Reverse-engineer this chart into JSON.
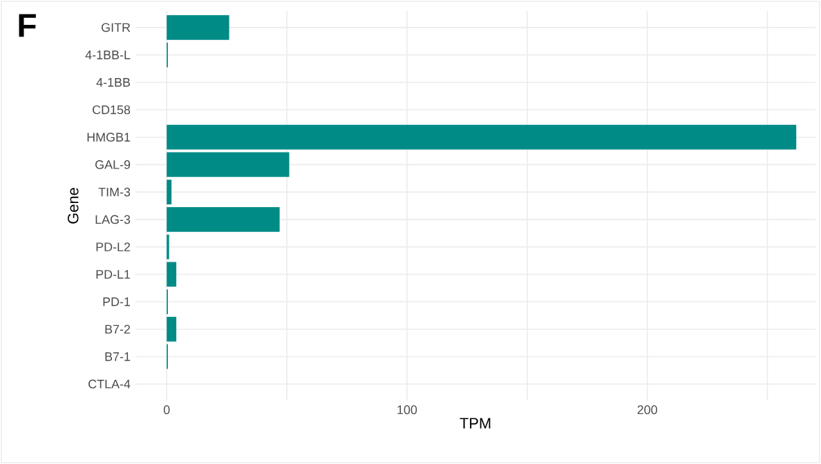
{
  "chart_data": {
    "type": "bar",
    "orientation": "horizontal",
    "title": "F",
    "xlabel": "TPM",
    "ylabel": "Gene",
    "categories": [
      "GITR",
      "4-1BB-L",
      "4-1BB",
      "CD158",
      "HMGB1",
      "GAL-9",
      "TIM-3",
      "LAG-3",
      "PD-L2",
      "PD-L1",
      "PD-1",
      "B7-2",
      "B7-1",
      "CTLA-4"
    ],
    "values": [
      26,
      0.5,
      0,
      0,
      262,
      51,
      2,
      47,
      1,
      4,
      0.5,
      4,
      0.5,
      0
    ],
    "color": "#008b87",
    "xlim": [
      -13,
      270
    ],
    "xticks": [
      0,
      {
        "value": 50,
        "label": null
      },
      100,
      {
        "value": 150,
        "label": null
      },
      200,
      {
        "value": 250,
        "label": null
      }
    ],
    "grid": true
  }
}
